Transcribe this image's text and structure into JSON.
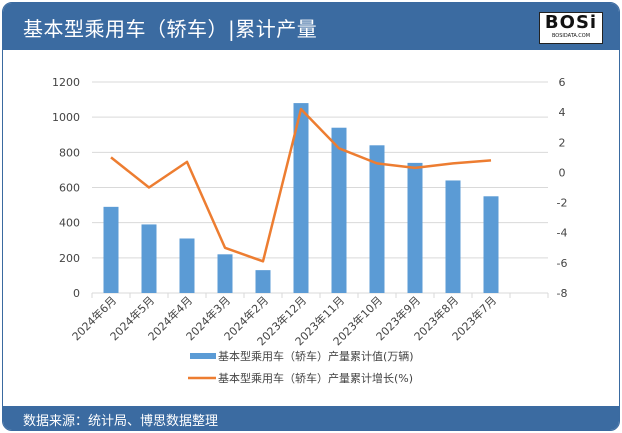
{
  "header": {
    "title": "基本型乘用车（轿车）|累计产量",
    "logo_text": "BOSi",
    "logo_sub": "BOSIDATA.COM"
  },
  "footer": {
    "source": "数据来源：统计局、博思数据整理"
  },
  "colors": {
    "header": "#3b6ba1",
    "bar": "#5b9bd5",
    "line": "#ed7d31"
  },
  "chart_data": {
    "type": "bar+line",
    "categories": [
      "2024年6月",
      "2024年5月",
      "2024年4月",
      "2024年3月",
      "2024年2月",
      "2023年12月",
      "2023年11月",
      "2023年10月",
      "2023年9月",
      "2023年8月",
      "2023年7月"
    ],
    "series": [
      {
        "name": "基本型乘用车（轿车）产量累计值(万辆)",
        "type": "bar",
        "axis": "left",
        "values": [
          490,
          390,
          310,
          220,
          130,
          1080,
          940,
          840,
          740,
          640,
          550
        ]
      },
      {
        "name": "基本型乘用车（轿车）产量累计增长(%)",
        "type": "line",
        "axis": "right",
        "values": [
          1.0,
          -1.0,
          0.7,
          -5.0,
          -5.9,
          4.2,
          1.6,
          0.6,
          0.3,
          0.6,
          0.8
        ]
      }
    ],
    "left_axis": {
      "range": [
        0,
        1200
      ],
      "ticks": [
        0,
        200,
        400,
        600,
        800,
        1000,
        1200
      ]
    },
    "right_axis": {
      "range": [
        -8,
        6
      ],
      "ticks": [
        -8,
        -6,
        -4,
        -2,
        0,
        2,
        4,
        6
      ]
    },
    "grid": true,
    "legend": "bottom"
  }
}
